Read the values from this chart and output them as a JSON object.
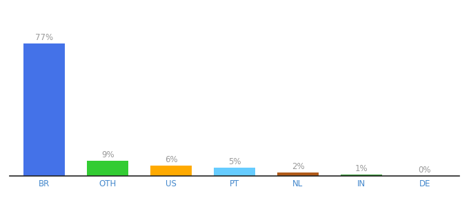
{
  "categories": [
    "BR",
    "OTH",
    "US",
    "PT",
    "NL",
    "IN",
    "DE"
  ],
  "values": [
    77,
    9,
    6,
    5,
    2,
    1,
    0
  ],
  "bar_colors": [
    "#4472e8",
    "#33cc33",
    "#ffaa00",
    "#66ccff",
    "#b05a1a",
    "#339933",
    "#aaaaaa"
  ],
  "labels": [
    "77%",
    "9%",
    "6%",
    "5%",
    "2%",
    "1%",
    "0%"
  ],
  "background_color": "#ffffff",
  "label_color": "#999999",
  "label_fontsize": 8.5,
  "tick_fontsize": 8.5,
  "tick_color": "#4488cc",
  "ylim": [
    0,
    88
  ],
  "bar_width": 0.65
}
